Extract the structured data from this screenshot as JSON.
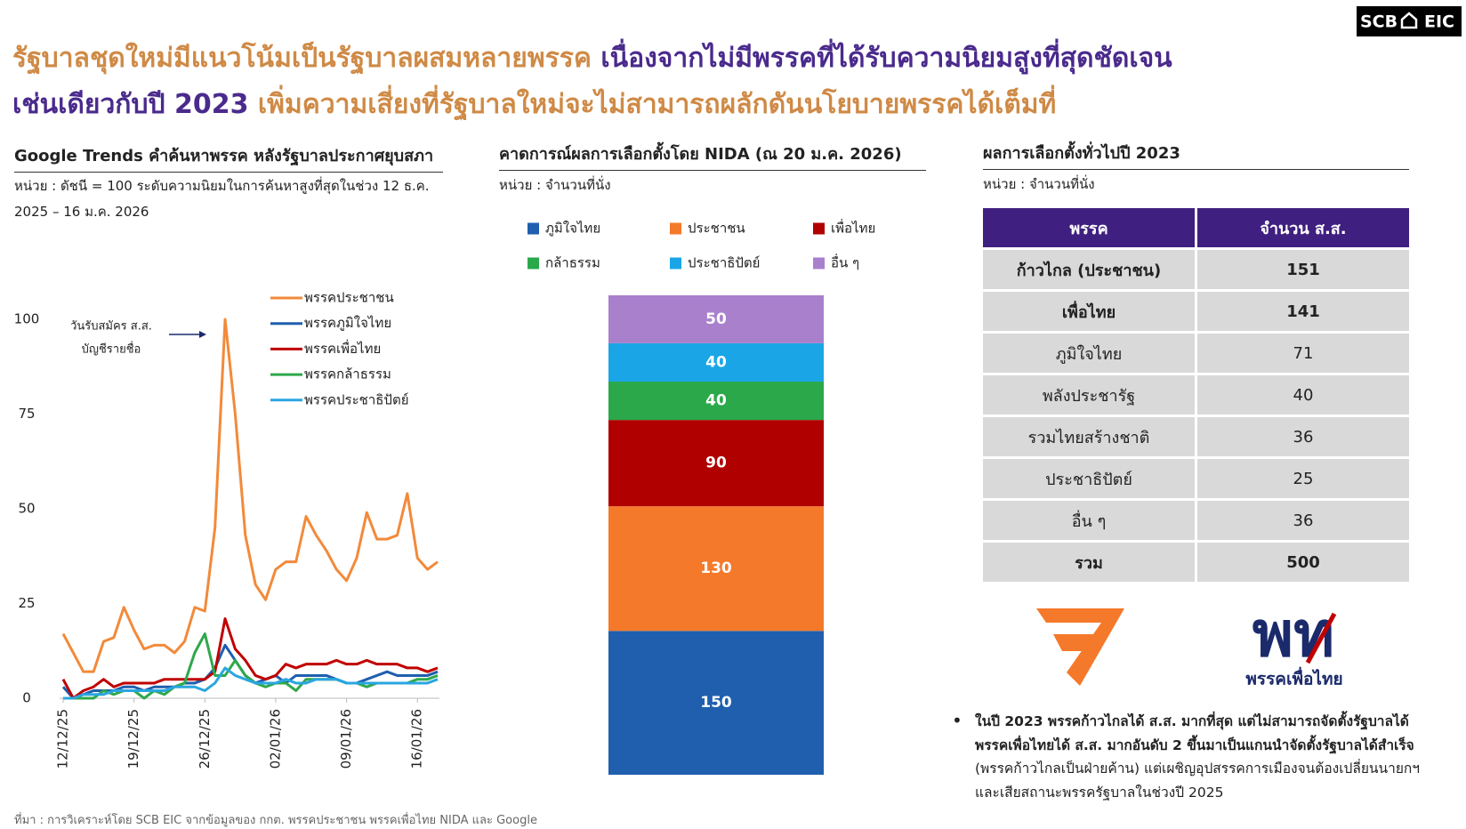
{
  "brand": {
    "left": "SCB",
    "right": "EIC"
  },
  "headline": [
    [
      {
        "text": "รัฐบาลชุดใหม่มีแนวโน้มเป็นรัฐบาลผสมหลายพรรค ",
        "color": "#cf8a46"
      },
      {
        "text": "เนื่องจากไม่มีพรรคที่ได้รับความนิยมสูงที่สุดชัดเจน",
        "color": "#4a2a8c"
      }
    ],
    [
      {
        "text": "เช่นเดียวกับปี 2023 ",
        "color": "#4a2a8c"
      },
      {
        "text": "เพิ่มความเสี่ยงที่รัฐบาลใหม่จะไม่สามารถผลักดันนโยบายพรรคได้เต็มที่",
        "color": "#cf8a46"
      }
    ]
  ],
  "chart_data": [
    {
      "type": "line",
      "title": "Google Trends คำค้นหาพรรค หลังรัฐบาลประกาศยุบสภา",
      "subtitle": "หน่วย : ดัชนี = 100 ระดับความนิยมในการค้นหาสูงที่สุดในช่วง 12 ธ.ค. 2025 – 16 ม.ค. 2026",
      "annotation": [
        "วันรับสมัคร ส.ส.",
        "บัญชีรายชื่อ"
      ],
      "categories": [
        "12/12/25",
        null,
        null,
        null,
        null,
        null,
        null,
        "19/12/25",
        null,
        null,
        null,
        null,
        null,
        null,
        "26/12/25",
        null,
        null,
        null,
        null,
        null,
        null,
        "02/01/26",
        null,
        null,
        null,
        null,
        null,
        null,
        "09/01/26",
        null,
        null,
        null,
        null,
        null,
        null,
        "16/01/26",
        null,
        null
      ],
      "series": [
        {
          "name": "พรรคประชาชน",
          "color": "#f28a3a",
          "values": [
            17,
            12,
            7,
            7,
            15,
            16,
            24,
            18,
            13,
            14,
            14,
            12,
            15,
            24,
            23,
            45,
            100,
            75,
            43,
            30,
            26,
            34,
            36,
            36,
            48,
            43,
            39,
            34,
            31,
            37,
            49,
            42,
            42,
            43,
            54,
            37,
            34,
            36
          ]
        },
        {
          "name": "พรรคภูมิใจไทย",
          "color": "#1f5fae",
          "values": [
            3,
            0,
            1,
            2,
            2,
            2,
            3,
            3,
            2,
            3,
            3,
            3,
            4,
            4,
            5,
            8,
            14,
            10,
            6,
            4,
            5,
            6,
            4,
            6,
            6,
            6,
            6,
            5,
            4,
            4,
            5,
            6,
            7,
            6,
            6,
            6,
            6,
            7
          ]
        },
        {
          "name": "พรรคเพื่อไทย",
          "color": "#c00000",
          "values": [
            5,
            0,
            2,
            3,
            5,
            3,
            4,
            4,
            4,
            4,
            5,
            5,
            5,
            5,
            5,
            7,
            21,
            13,
            10,
            6,
            5,
            6,
            9,
            8,
            9,
            9,
            9,
            10,
            9,
            9,
            10,
            9,
            9,
            9,
            8,
            8,
            7,
            8
          ]
        },
        {
          "name": "พรรคกล้าธรรม",
          "color": "#2ea84a",
          "values": [
            0,
            0,
            0,
            0,
            2,
            1,
            2,
            2,
            0,
            2,
            1,
            3,
            4,
            12,
            17,
            6,
            6,
            10,
            6,
            4,
            3,
            4,
            4,
            2,
            5,
            5,
            5,
            5,
            4,
            4,
            3,
            4,
            4,
            4,
            4,
            5,
            5,
            6
          ]
        },
        {
          "name": "พรรคประชาธิปัตย์",
          "color": "#2aa6e0",
          "values": [
            0,
            0,
            1,
            1,
            1,
            2,
            2,
            2,
            2,
            2,
            2,
            3,
            3,
            3,
            2,
            4,
            8,
            6,
            5,
            4,
            4,
            4,
            5,
            4,
            4,
            5,
            5,
            5,
            4,
            4,
            4,
            4,
            4,
            4,
            4,
            4,
            4,
            5
          ]
        }
      ],
      "ylim": [
        0,
        100
      ],
      "yticks": [
        0,
        25,
        50,
        75,
        100
      ],
      "grid": false
    },
    {
      "type": "bar",
      "stacked": true,
      "title": "คาดการณ์ผลการเลือกตั้งโดย NIDA (ณ 20 ม.ค. 2026)",
      "subtitle": "หน่วย : จำนวนที่นั่ง",
      "series": [
        {
          "name": "ภูมิใจไทย",
          "color": "#1f5fae",
          "values": [
            150
          ]
        },
        {
          "name": "ประชาชน",
          "color": "#f5792a",
          "values": [
            130
          ]
        },
        {
          "name": "เพื่อไทย",
          "color": "#b00000",
          "values": [
            90
          ]
        },
        {
          "name": "กล้าธรรม",
          "color": "#2aa84a",
          "values": [
            40
          ]
        },
        {
          "name": "ประชาธิปัตย์",
          "color": "#1aa6e6",
          "values": [
            40
          ]
        },
        {
          "name": "อื่น ๆ",
          "color": "#a880cc",
          "values": [
            50
          ]
        }
      ],
      "ylim": [
        0,
        500
      ]
    }
  ],
  "table": {
    "title": "ผลการเลือกตั้งทั่วไปปี 2023",
    "subtitle": "หน่วย : จำนวนที่นั่ง",
    "header": [
      "พรรค",
      "จำนวน ส.ส."
    ],
    "rows": [
      [
        "ก้าวไกล (ประชาชน)",
        151
      ],
      [
        "เพื่อไทย",
        141
      ],
      [
        "ภูมิใจไทย",
        71
      ],
      [
        "พลังประชารัฐ",
        40
      ],
      [
        "รวมไทยสร้างชาติ",
        36
      ],
      [
        "ประชาธิปัตย์",
        25
      ],
      [
        "อื่น ๆ",
        36
      ],
      [
        "รวม",
        500
      ]
    ]
  },
  "logos": {
    "mark": "พท",
    "name": "พรรคเพื่อไทย"
  },
  "note": {
    "bold": "ในปี 2023 พรรคก้าวไกลได้ ส.ส. มากที่สุด แต่ไม่สามารถจัดตั้งรัฐบาลได้ พรรคเพื่อไทยได้ ส.ส. มากอันดับ 2 ขึ้นมาเป็นแกนนำจัดตั้งรัฐบาลได้สำเร็จ",
    "text": " (พรรคก้าวไกลเป็นฝ่ายค้าน) แต่เผชิญอุปสรรคการเมืองจนต้องเปลี่ยนนายกฯ และเสียสถานะพรรครัฐบาลในช่วงปี 2025"
  },
  "source": "ที่มา : การวิเคราะห์โดย SCB EIC จากข้อมูลของ กกต. พรรคประชาชน พรรคเพื่อไทย NIDA และ Google"
}
